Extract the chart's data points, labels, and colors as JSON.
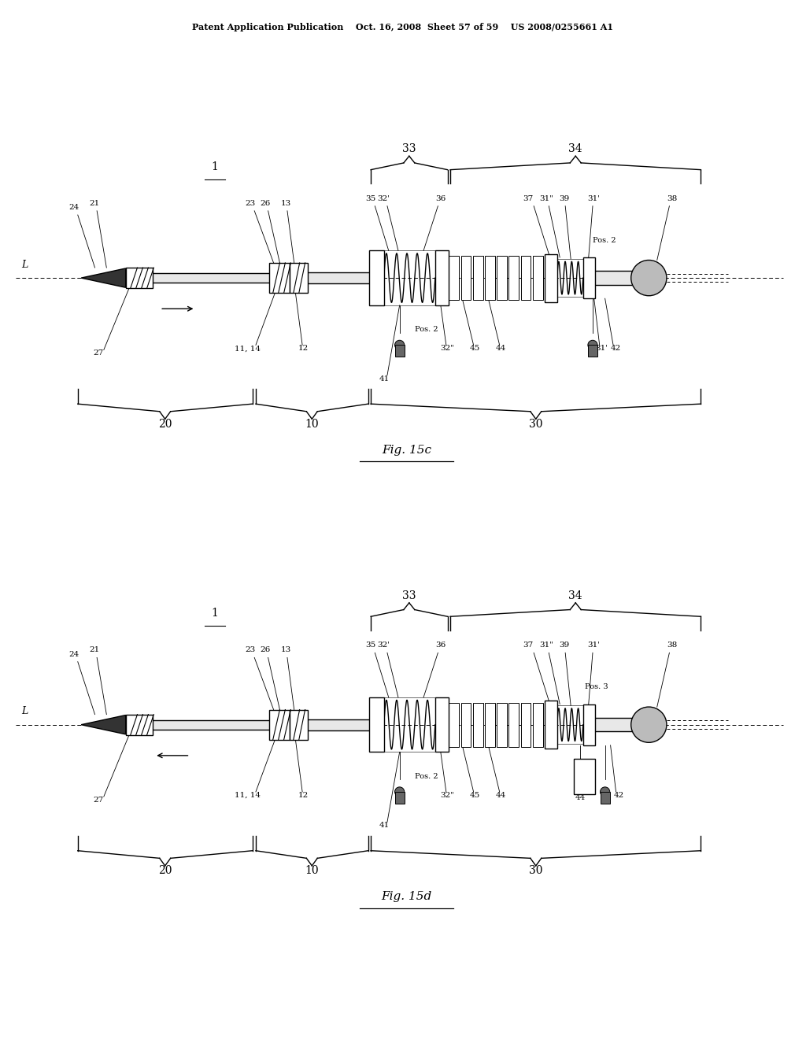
{
  "bg_color": "#ffffff",
  "header_text": "Patent Application Publication    Oct. 16, 2008  Sheet 57 of 59    US 2008/0255661 A1",
  "fig1_caption": "Fig. 15c",
  "fig2_caption": "Fig. 15d",
  "line_color": "#000000",
  "text_color": "#000000"
}
